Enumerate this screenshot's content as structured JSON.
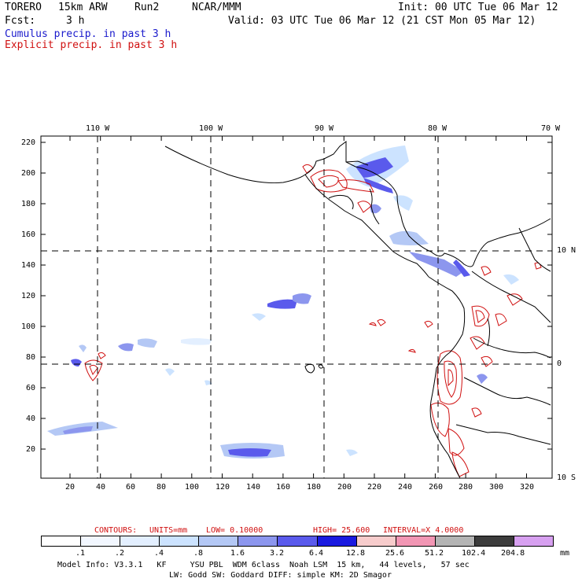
{
  "header": {
    "model": "TORERO",
    "resolution": "15km ARW",
    "run": "Run2",
    "org": "NCAR/MMM",
    "init": "Init: 00 UTC Tue 06 Mar 12",
    "fcst_label": "Fcst:",
    "fcst_value": "3 h",
    "valid": "Valid: 03 UTC Tue 06 Mar 12 (21 CST Mon 05 Mar 12)",
    "cumulus_label": "Cumulus precip. in past 3 h",
    "explicit_label": "Explicit precip. in past 3 h"
  },
  "map": {
    "top_lon_labels": [
      "110 W",
      "100 W",
      "90 W",
      "80 W",
      "70 W"
    ],
    "right_lat_labels": [
      "10 N",
      "0",
      "10 S"
    ],
    "y_ticks": [
      "220",
      "200",
      "180",
      "160",
      "140",
      "120",
      "100",
      "80",
      "60",
      "40",
      "20"
    ],
    "x_ticks": [
      "20",
      "40",
      "60",
      "80",
      "100",
      "120",
      "140",
      "160",
      "180",
      "200",
      "220",
      "240",
      "260",
      "280",
      "300",
      "320"
    ]
  },
  "contours": {
    "label": "CONTOURS:",
    "units": "UNITS=mm",
    "low": "LOW= 0.10000",
    "high": "HIGH= 25.600",
    "interval": "INTERVAL=X 4.0000"
  },
  "colorbar": {
    "labels": [
      ".1",
      ".2",
      ".4",
      ".8",
      "1.6",
      "3.2",
      "6.4",
      "12.8",
      "25.6",
      "51.2",
      "102.4",
      "204.8"
    ],
    "unit": "mm",
    "colors": [
      "#ffffff",
      "#f2f7ff",
      "#e3efff",
      "#cce3ff",
      "#b4c8f5",
      "#8c96ee",
      "#5a5aec",
      "#1a1ae0",
      "#f7cccc",
      "#f296b4",
      "#b4b4b4",
      "#3c3c3c",
      "#d7a0f0"
    ]
  },
  "footer": {
    "line1": "Model Info: V3.3.1   KF     YSU PBL  WDM 6class  Noah LSM  15 km,   44 levels,   57 sec",
    "line2": "LW: Godd SW: Goddard DIFF: simple KM: 2D Smagor"
  }
}
